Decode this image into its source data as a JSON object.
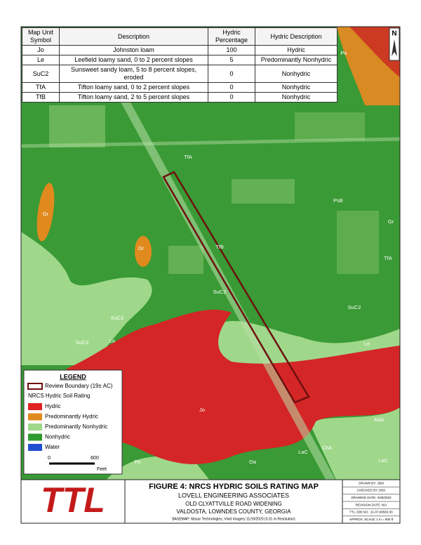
{
  "table": {
    "header": [
      "Map Unit Symbol",
      "Description",
      "Hydric Percentage",
      "Hydric Description"
    ],
    "rows": [
      [
        "Jo",
        "Johnston loam",
        100,
        "Hydric"
      ],
      [
        "Le",
        "Leefield loamy sand, 0 to 2 percent slopes",
        5,
        "Predominantly Nonhydric"
      ],
      [
        "SuC2",
        "Sunsweet sandy loam, 5 to 8 percent slopes, eroded",
        0,
        "Nonhydric"
      ],
      [
        "TfA",
        "Tifton loamy sand, 0 to 2 percent slopes",
        0,
        "Nonhydric"
      ],
      [
        "TfB",
        "Tifton loamy sand, 2 to 5 percent slopes",
        0,
        "Nonhydric"
      ]
    ]
  },
  "north": "N",
  "map_labels": [
    "Pe",
    "TfA",
    "PsB",
    "Gr",
    "Gr",
    "Gr",
    "TfB",
    "TfA",
    "SuC2",
    "SuC2",
    "SuC2",
    "SuC2",
    "Le",
    "Le",
    "Jo",
    "AdA",
    "LaC",
    "ChA",
    "LaC",
    "Oa",
    "Pe"
  ],
  "legend": {
    "title": "LEGEND",
    "boundary": "Review Boundary (19± AC)",
    "rating_title": "NRCS Hydric Soil Rating",
    "items": [
      {
        "label": "Hydric",
        "color": "#e02222"
      },
      {
        "label": "Predominantly Hydric",
        "color": "#e08a1e"
      },
      {
        "label": "Predominantly Nonhydric",
        "color": "#9fd88a"
      },
      {
        "label": "Nonhydric",
        "color": "#2f9a2f"
      },
      {
        "label": "Water",
        "color": "#1f4fd0"
      }
    ],
    "scale": {
      "start": 0,
      "end": 600,
      "unit": "Feet"
    }
  },
  "title_block": {
    "logo": "TTL",
    "figure": "FIGURE 4: NRCS HYDRIC SOILS RATING MAP",
    "company": "LOVELL ENGINEERING ASSOCIATES",
    "project": "OLD CLYATTVILLE ROAD WIDENING",
    "location": "VALDOSTA, LOWNDES COUNTY, GEORGIA",
    "basemap": "BASEMAP: Maxar Technologies, Vivid Imagery 11/19/2020 (0.31 m Resolution)"
  },
  "info": [
    "DRAWN BY: JDM",
    "CHECKED BY: DEK",
    "DRAWING DATE: 4/28/2023",
    "REVISION DATE: N/A",
    "TTL JOB NO.: 21-07-00563.00",
    "APPROX. SCALE: 1 in = 600 ft"
  ]
}
